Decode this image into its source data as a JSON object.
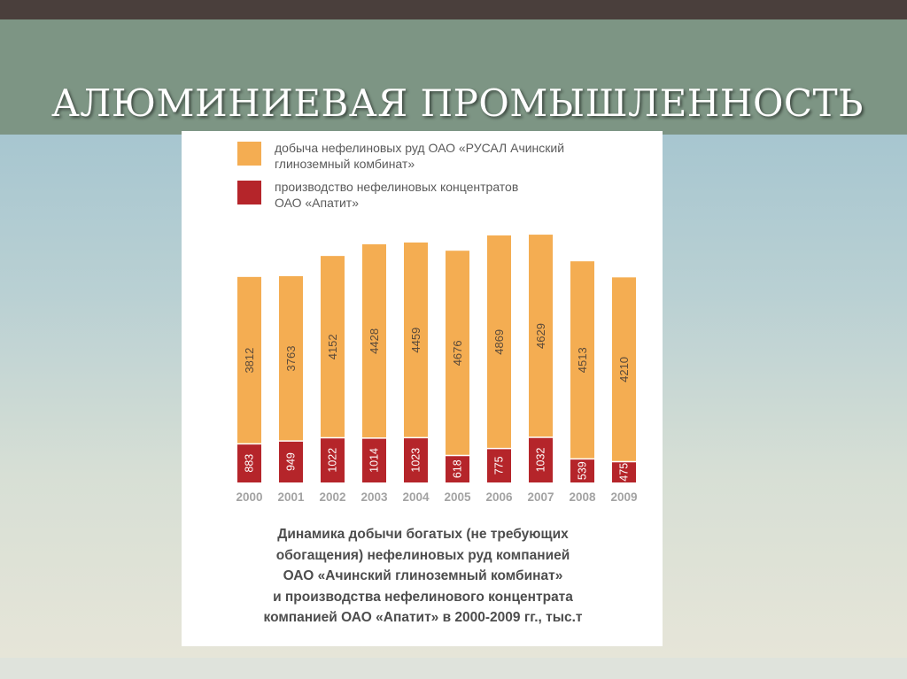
{
  "slide": {
    "title": "АЛЮМИНИЕВАЯ ПРОМЫШЛЕННОСТЬ"
  },
  "legend": {
    "items": [
      {
        "lines": [
          "добыча нефелиновых руд ОАО «РУСАЛ Ачинский",
          "глиноземный комбинат»"
        ],
        "color": "#f4ad52"
      },
      {
        "lines": [
          "производство нефелиновых концентратов",
          "ОАО «Апатит»"
        ],
        "color": "#b5252a"
      }
    ]
  },
  "caption": {
    "lines": [
      "Динамика добычи богатых (не требующих",
      "обогащения) нефелиновых руд компанией",
      "ОАО «Ачинский глиноземный комбинат»",
      "и производства нефелинового концентрата",
      "компанией ОАО «Апатит» в 2000-2009 гг., тыс.т"
    ]
  },
  "chart_data": {
    "type": "bar",
    "stacked": true,
    "categories": [
      "2000",
      "2001",
      "2002",
      "2003",
      "2004",
      "2005",
      "2006",
      "2007",
      "2008",
      "2009"
    ],
    "series": [
      {
        "name": "производство нефелиновых концентратов ОАО «Апатит»",
        "values": [
          883,
          949,
          1022,
          1014,
          1023,
          618,
          775,
          1032,
          539,
          475
        ],
        "color": "#b5252a"
      },
      {
        "name": "добыча нефелиновых руд ОАО «РУСАЛ Ачинский глиноземный комбинат»",
        "values": [
          3812,
          3763,
          4152,
          4428,
          4459,
          4676,
          4869,
          4629,
          4513,
          4210
        ],
        "color": "#f4ad52"
      }
    ],
    "axis": {
      "y_visible": false,
      "grid": false
    },
    "colors": {
      "tick_label": "#a3a3a3",
      "data_label": "#5a4a3a",
      "data_label_on_dark": "#ffffff"
    }
  }
}
